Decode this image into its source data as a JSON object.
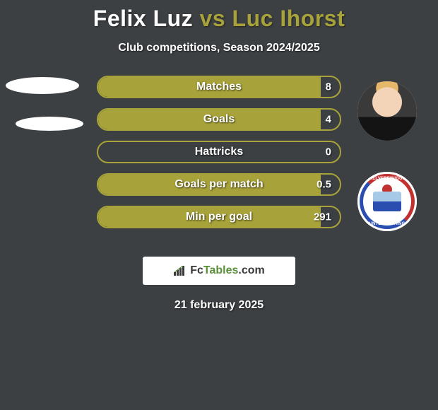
{
  "title": {
    "player1": "Felix Luz",
    "vs": "vs",
    "player2": "Luc Ihorst",
    "player1_color": "#ffffff",
    "player2_color": "#a8a23a"
  },
  "subtitle": "Club competitions, Season 2024/2025",
  "stats": [
    {
      "label": "Matches",
      "value": "8",
      "fill_pct": 92
    },
    {
      "label": "Goals",
      "value": "4",
      "fill_pct": 92
    },
    {
      "label": "Hattricks",
      "value": "0",
      "fill_pct": 0
    },
    {
      "label": "Goals per match",
      "value": "0.5",
      "fill_pct": 92
    },
    {
      "label": "Min per goal",
      "value": "291",
      "fill_pct": 92
    }
  ],
  "badge": {
    "text_top": "SPIELVEREINIGUNG",
    "text_bottom": "UNTERHACHING",
    "ring_top_color": "#c23030",
    "ring_bottom_color": "#2a4db0"
  },
  "watermark": {
    "fc": "Fc",
    "tables": "Tables",
    "com": ".com"
  },
  "date": "21 february 2025",
  "colors": {
    "background": "#3d4043",
    "accent": "#a8a23a",
    "text": "#ffffff"
  }
}
